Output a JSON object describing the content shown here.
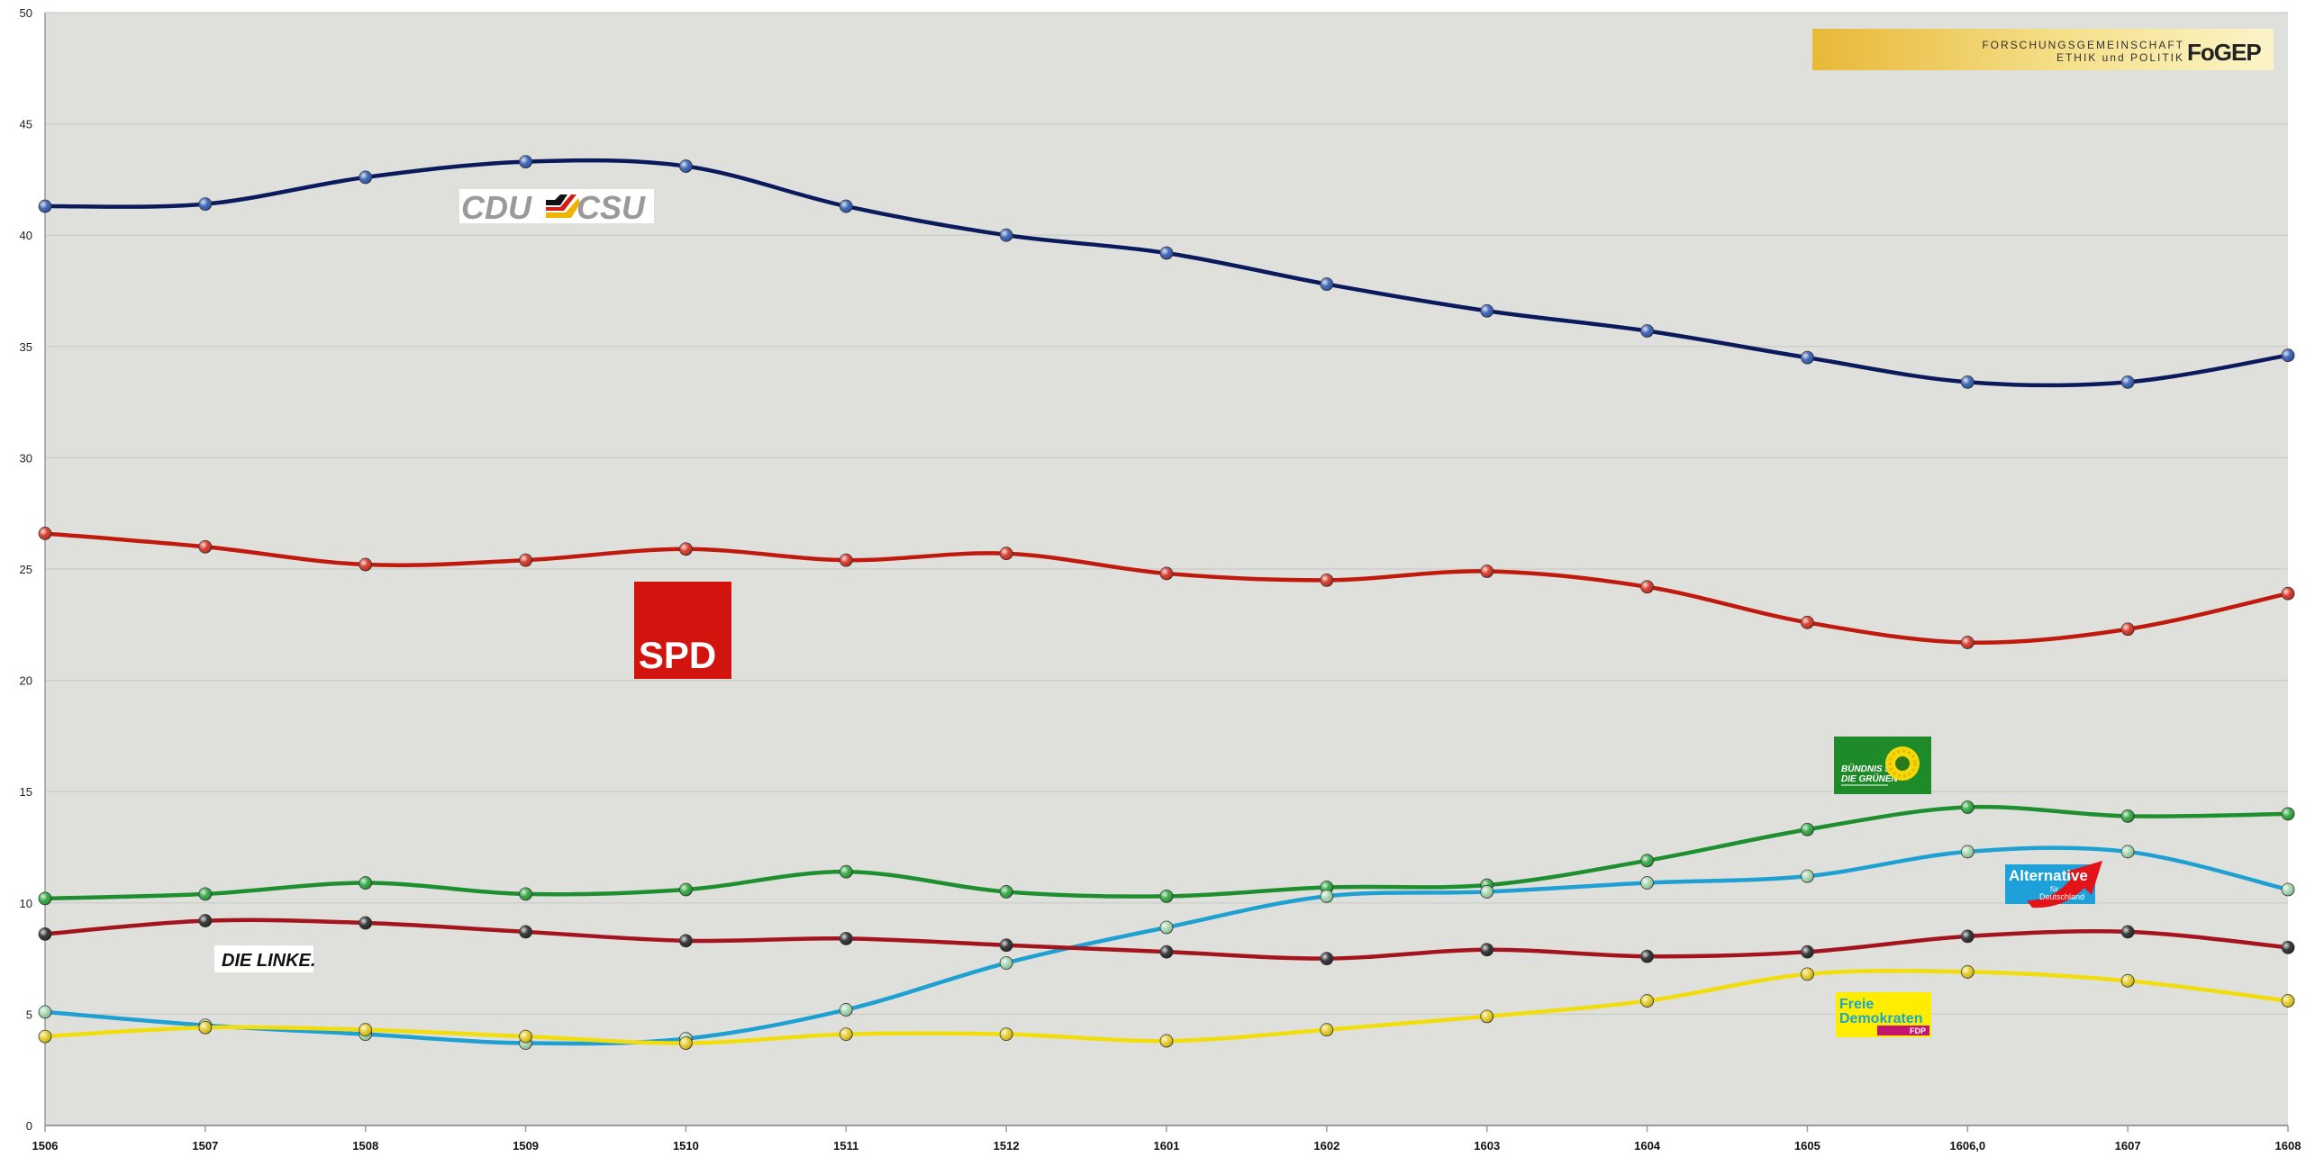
{
  "chart_data": {
    "type": "line",
    "categories": [
      "1506",
      "1507",
      "1508",
      "1509",
      "1510",
      "1511",
      "1512",
      "1601",
      "1602",
      "1603",
      "1604",
      "1605",
      "1606,0",
      "1607",
      "1608"
    ],
    "ylim": [
      0,
      50
    ],
    "yticks": [
      0,
      5,
      10,
      15,
      20,
      25,
      30,
      35,
      40,
      45,
      50
    ],
    "grid": true,
    "title": "",
    "xlabel": "",
    "ylabel": "",
    "series": [
      {
        "key": "cdu",
        "color": "#0b1a5c",
        "marker": "#2b57b0",
        "values": [
          41.3,
          41.4,
          42.6,
          43.3,
          43.1,
          41.3,
          40.0,
          39.2,
          37.8,
          36.6,
          35.7,
          34.5,
          33.4,
          33.4,
          34.6
        ]
      },
      {
        "key": "spd",
        "color": "#c01a0e",
        "marker": "#d22a1a",
        "values": [
          26.6,
          26.0,
          25.2,
          25.4,
          25.9,
          25.4,
          25.7,
          24.8,
          24.5,
          24.9,
          24.2,
          22.6,
          21.7,
          22.3,
          23.9
        ]
      },
      {
        "key": "gruene",
        "color": "#1e8f2e",
        "marker": "#24a236",
        "values": [
          10.2,
          10.4,
          10.9,
          10.4,
          10.6,
          11.4,
          10.5,
          10.3,
          10.7,
          10.8,
          11.9,
          13.3,
          14.3,
          13.9,
          14.0
        ]
      },
      {
        "key": "afd",
        "color": "#1ea0d2",
        "marker": "#9ed4a8",
        "values": [
          5.1,
          4.5,
          4.1,
          3.7,
          3.9,
          5.2,
          7.3,
          8.9,
          10.3,
          10.5,
          10.9,
          11.2,
          12.3,
          12.3,
          10.6
        ]
      },
      {
        "key": "linke",
        "color": "#a3141e",
        "marker": "#222222",
        "values": [
          8.6,
          9.2,
          9.1,
          8.7,
          8.3,
          8.4,
          8.1,
          7.8,
          7.5,
          7.9,
          7.6,
          7.8,
          8.5,
          8.7,
          8.0
        ]
      },
      {
        "key": "fdp",
        "color": "#f2dd0c",
        "marker": "#e3c91a",
        "values": [
          4.0,
          4.4,
          4.3,
          4.0,
          3.7,
          4.1,
          4.1,
          3.8,
          4.3,
          4.9,
          5.6,
          6.8,
          6.9,
          6.5,
          5.6
        ]
      }
    ]
  },
  "logos": {
    "fogep": {
      "line1": "FORSCHUNGSGEMEINSCHAFT",
      "line2": "ETHIK und POLITIK",
      "mark": "FoGEP"
    },
    "cdu": {
      "left": "CDU",
      "right": "CSU"
    },
    "spd": {
      "text": "SPD"
    },
    "gruene": {
      "line1": "BÜNDNIS 90",
      "line2": "DIE GRÜNEN"
    },
    "afd": {
      "line1": "Alternative",
      "line2": "für",
      "line3": "Deutschland"
    },
    "linke": {
      "text": "DIE LINKE."
    },
    "fdp": {
      "line1": "Freie",
      "line2": "Demokraten",
      "badge": "FDP"
    }
  },
  "colors": {
    "plot_bg": "#dfe0dc",
    "grid": "#c9cac6",
    "axis": "#9a9a9a"
  }
}
